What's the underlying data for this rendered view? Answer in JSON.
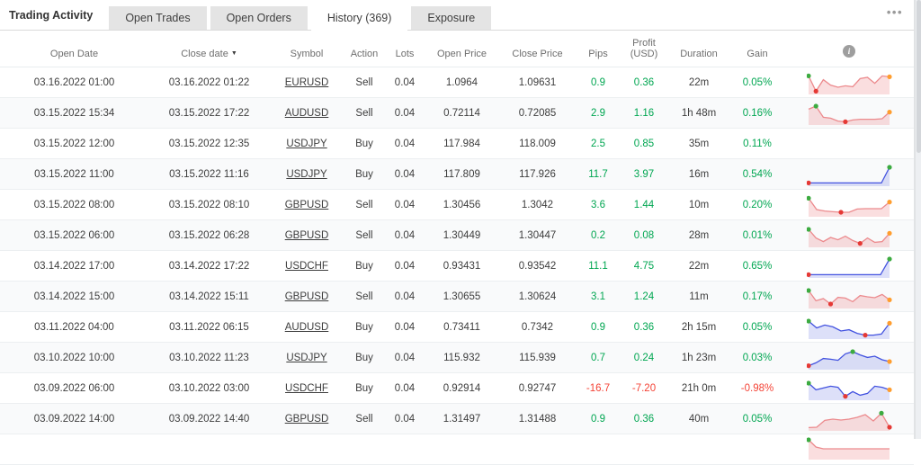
{
  "tabs": {
    "section_label": "Trading Activity",
    "items": [
      {
        "label": "Open Trades",
        "active": false
      },
      {
        "label": "Open Orders",
        "active": false
      },
      {
        "label": "History (369)",
        "active": true
      },
      {
        "label": "Exposure",
        "active": false
      }
    ],
    "menu_label": "•••"
  },
  "table": {
    "columns": [
      "Open Date",
      "Close date",
      "Symbol",
      "Action",
      "Lots",
      "Open Price",
      "Close Price",
      "Pips",
      "Profit",
      "Duration",
      "Gain"
    ],
    "profit_sub": "(USD)",
    "sort_icon": "▼",
    "info_icon_label": "i",
    "rows": [
      {
        "open_date": "03.16.2022 01:00",
        "close_date": "03.16.2022 01:22",
        "symbol": "EURUSD",
        "action": "Sell",
        "lots": "0.04",
        "open_price": "1.0964",
        "close_price": "1.09631",
        "pips": "0.9",
        "profit": "0.36",
        "duration": "22m",
        "gain": "0.05%",
        "negative": false,
        "spark": {
          "color": "red",
          "points": [
            0.93,
            0.08,
            0.72,
            0.42,
            0.3,
            0.38,
            0.33,
            0.78,
            0.85,
            0.52,
            0.93,
            0.88
          ],
          "dots": [
            [
              "green",
              0
            ],
            [
              "red",
              1
            ],
            [
              "orange",
              11
            ]
          ]
        }
      },
      {
        "open_date": "03.15.2022 15:34",
        "close_date": "03.15.2022 17:22",
        "symbol": "AUDUSD",
        "action": "Sell",
        "lots": "0.04",
        "open_price": "0.72114",
        "close_price": "0.72085",
        "pips": "2.9",
        "profit": "1.16",
        "duration": "1h 48m",
        "gain": "0.16%",
        "negative": false,
        "spark": {
          "color": "red",
          "points": [
            0.78,
            0.95,
            0.33,
            0.28,
            0.12,
            0.08,
            0.18,
            0.22,
            0.22,
            0.22,
            0.25,
            0.62
          ],
          "dots": [
            [
              "green",
              1
            ],
            [
              "red",
              5
            ],
            [
              "orange",
              11
            ]
          ]
        }
      },
      {
        "open_date": "03.15.2022 12:00",
        "close_date": "03.15.2022 12:35",
        "symbol": "USDJPY",
        "action": "Buy",
        "lots": "0.04",
        "open_price": "117.984",
        "close_price": "118.009",
        "pips": "2.5",
        "profit": "0.85",
        "duration": "35m",
        "gain": "0.11%",
        "negative": false,
        "spark": null
      },
      {
        "open_date": "03.15.2022 11:00",
        "close_date": "03.15.2022 11:16",
        "symbol": "USDJPY",
        "action": "Buy",
        "lots": "0.04",
        "open_price": "117.809",
        "close_price": "117.926",
        "pips": "11.7",
        "profit": "3.97",
        "duration": "16m",
        "gain": "0.54%",
        "negative": false,
        "spark": {
          "color": "blue",
          "points": [
            0.08,
            0.08,
            0.08,
            0.08,
            0.08,
            0.08,
            0.08,
            0.08,
            0.08,
            0.08,
            0.95
          ],
          "dots": [
            [
              "red",
              0
            ],
            [
              "green",
              10
            ]
          ]
        }
      },
      {
        "open_date": "03.15.2022 08:00",
        "close_date": "03.15.2022 08:10",
        "symbol": "GBPUSD",
        "action": "Sell",
        "lots": "0.04",
        "open_price": "1.30456",
        "close_price": "1.3042",
        "pips": "3.6",
        "profit": "1.44",
        "duration": "10m",
        "gain": "0.20%",
        "negative": false,
        "spark": {
          "color": "red",
          "points": [
            0.93,
            0.3,
            0.22,
            0.18,
            0.15,
            0.15,
            0.33,
            0.35,
            0.35,
            0.35,
            0.72
          ],
          "dots": [
            [
              "green",
              0
            ],
            [
              "red",
              4
            ],
            [
              "orange",
              10
            ]
          ]
        }
      },
      {
        "open_date": "03.15.2022 06:00",
        "close_date": "03.15.2022 06:28",
        "symbol": "GBPUSD",
        "action": "Sell",
        "lots": "0.04",
        "open_price": "1.30449",
        "close_price": "1.30447",
        "pips": "0.2",
        "profit": "0.08",
        "duration": "28m",
        "gain": "0.01%",
        "negative": false,
        "spark": {
          "color": "red",
          "points": [
            0.9,
            0.42,
            0.22,
            0.45,
            0.32,
            0.52,
            0.28,
            0.12,
            0.42,
            0.18,
            0.22,
            0.68
          ],
          "dots": [
            [
              "green",
              0
            ],
            [
              "red",
              7
            ],
            [
              "orange",
              11
            ]
          ]
        }
      },
      {
        "open_date": "03.14.2022 17:00",
        "close_date": "03.14.2022 17:22",
        "symbol": "USDCHF",
        "action": "Buy",
        "lots": "0.04",
        "open_price": "0.93431",
        "close_price": "0.93542",
        "pips": "11.1",
        "profit": "4.75",
        "duration": "22m",
        "gain": "0.65%",
        "negative": false,
        "spark": {
          "color": "blue",
          "points": [
            0.08,
            0.08,
            0.08,
            0.08,
            0.08,
            0.08,
            0.08,
            0.08,
            0.08,
            0.95
          ],
          "dots": [
            [
              "red",
              0
            ],
            [
              "green",
              9
            ]
          ]
        }
      },
      {
        "open_date": "03.14.2022 15:00",
        "close_date": "03.14.2022 15:11",
        "symbol": "GBPUSD",
        "action": "Sell",
        "lots": "0.04",
        "open_price": "1.30655",
        "close_price": "1.30624",
        "pips": "3.1",
        "profit": "1.24",
        "duration": "11m",
        "gain": "0.17%",
        "negative": false,
        "spark": {
          "color": "red",
          "points": [
            0.9,
            0.33,
            0.45,
            0.15,
            0.52,
            0.48,
            0.28,
            0.62,
            0.55,
            0.5,
            0.68,
            0.38
          ],
          "dots": [
            [
              "green",
              0
            ],
            [
              "red",
              3
            ],
            [
              "orange",
              11
            ]
          ]
        }
      },
      {
        "open_date": "03.11.2022 04:00",
        "close_date": "03.11.2022 06:15",
        "symbol": "AUDUSD",
        "action": "Buy",
        "lots": "0.04",
        "open_price": "0.73411",
        "close_price": "0.7342",
        "pips": "0.9",
        "profit": "0.36",
        "duration": "2h 15m",
        "gain": "0.05%",
        "negative": false,
        "spark": {
          "color": "blue",
          "points": [
            0.9,
            0.52,
            0.68,
            0.58,
            0.35,
            0.42,
            0.22,
            0.12,
            0.12,
            0.18,
            0.78
          ],
          "dots": [
            [
              "green",
              0
            ],
            [
              "red",
              7
            ],
            [
              "orange",
              10
            ]
          ]
        }
      },
      {
        "open_date": "03.10.2022 10:00",
        "close_date": "03.10.2022 11:23",
        "symbol": "USDJPY",
        "action": "Buy",
        "lots": "0.04",
        "open_price": "115.932",
        "close_price": "115.939",
        "pips": "0.7",
        "profit": "0.24",
        "duration": "1h 23m",
        "gain": "0.03%",
        "negative": false,
        "spark": {
          "color": "blue",
          "points": [
            0.12,
            0.28,
            0.52,
            0.48,
            0.42,
            0.78,
            0.9,
            0.72,
            0.58,
            0.65,
            0.45,
            0.35
          ],
          "dots": [
            [
              "red",
              0
            ],
            [
              "green",
              6
            ],
            [
              "orange",
              11
            ]
          ]
        }
      },
      {
        "open_date": "03.09.2022 06:00",
        "close_date": "03.10.2022 03:00",
        "symbol": "USDCHF",
        "action": "Buy",
        "lots": "0.04",
        "open_price": "0.92914",
        "close_price": "0.92747",
        "pips": "-16.7",
        "profit": "-7.20",
        "duration": "21h 0m",
        "gain": "-0.98%",
        "negative": true,
        "spark": {
          "color": "blue",
          "points": [
            0.85,
            0.48,
            0.58,
            0.68,
            0.62,
            0.12,
            0.38,
            0.18,
            0.28,
            0.68,
            0.62,
            0.48
          ],
          "dots": [
            [
              "green",
              0
            ],
            [
              "red",
              5
            ],
            [
              "orange",
              11
            ]
          ]
        }
      },
      {
        "open_date": "03.09.2022 14:00",
        "close_date": "03.09.2022 14:40",
        "symbol": "GBPUSD",
        "action": "Sell",
        "lots": "0.04",
        "open_price": "1.31497",
        "close_price": "1.31488",
        "pips": "0.9",
        "profit": "0.36",
        "duration": "40m",
        "gain": "0.05%",
        "negative": false,
        "spark": {
          "color": "red",
          "points": [
            0.08,
            0.1,
            0.48,
            0.55,
            0.5,
            0.55,
            0.65,
            0.8,
            0.45,
            0.88,
            0.1
          ],
          "dots": [
            [
              "green",
              9
            ],
            [
              "red",
              10
            ]
          ]
        }
      },
      {
        "open_date": "",
        "close_date": "",
        "symbol": "",
        "action": "",
        "lots": "",
        "open_price": "",
        "close_price": "",
        "pips": "",
        "profit": "",
        "duration": "",
        "gain": "",
        "negative": false,
        "partial": true,
        "spark": {
          "color": "red",
          "points": [
            1.0,
            0.6,
            0.5,
            0.5,
            0.5,
            0.5,
            0.5,
            0.5,
            0.5,
            0.5,
            0.5,
            0.5
          ],
          "dots": [
            [
              "green",
              0
            ]
          ]
        }
      }
    ]
  },
  "colors": {
    "positive": "#00a651",
    "negative": "#f44336",
    "spark_red": "#ec8a8d",
    "spark_red_fill": "rgba(236,138,141,0.28)",
    "spark_blue": "#4353e0",
    "spark_blue_fill": "rgba(67,83,224,0.18)",
    "dot_green": "#3cab40",
    "dot_red": "#e53935",
    "dot_orange": "#ff9d2e"
  }
}
